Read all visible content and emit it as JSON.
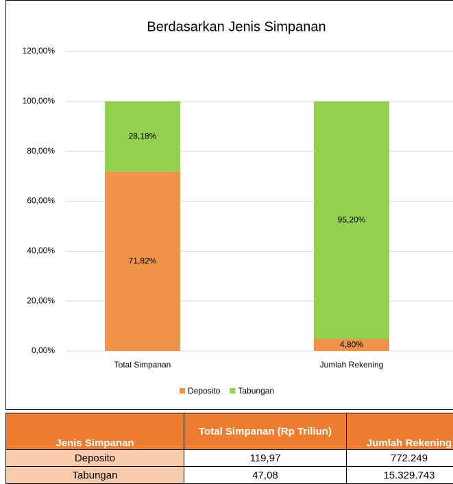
{
  "chart_data": {
    "type": "stacked_bar",
    "title": "Berdasarkan Jenis Simpanan",
    "categories": [
      "Total Simpanan",
      "Jumlah Rekening"
    ],
    "series": [
      {
        "name": "Deposito",
        "color": "#f0944a",
        "values": [
          71.82,
          4.8
        ],
        "value_labels": [
          "71,82%",
          "4,80%"
        ]
      },
      {
        "name": "Tabungan",
        "color": "#92d050",
        "values": [
          28.18,
          95.2
        ],
        "value_labels": [
          "28,18%",
          "95,20%"
        ]
      }
    ],
    "ylim": [
      0,
      120
    ],
    "yticks": [
      {
        "value": 0,
        "label": "0,00%"
      },
      {
        "value": 20,
        "label": "20,00%"
      },
      {
        "value": 40,
        "label": "40,00%"
      },
      {
        "value": 60,
        "label": "60,00%"
      },
      {
        "value": 80,
        "label": "80,00%"
      },
      {
        "value": 100,
        "label": "100,00%"
      },
      {
        "value": 120,
        "label": "120,00%"
      }
    ],
    "grid": true,
    "legend": "bottom"
  },
  "table": {
    "headers": [
      "Jenis Simpanan",
      "Total Simpanan (Rp Triliun)",
      "Jumlah Rekening"
    ],
    "rows": [
      [
        "Deposito",
        "119,97",
        "772.249"
      ],
      [
        "Tabungan",
        "47,08",
        "15.329.743"
      ]
    ]
  }
}
